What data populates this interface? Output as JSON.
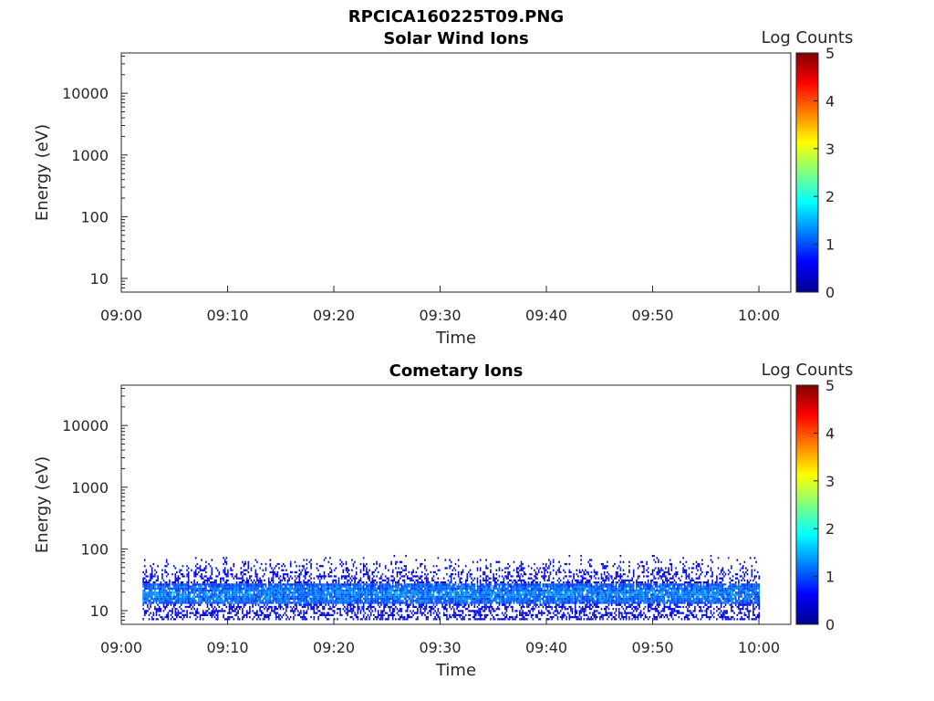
{
  "figure": {
    "title": "RPCICA160225T09.PNG"
  },
  "colors": {
    "axis": "#262626",
    "colormap": [
      "#00008f",
      "#0000ff",
      "#0080ff",
      "#00ffff",
      "#80ff80",
      "#ffff00",
      "#ff8000",
      "#ff0000",
      "#800000"
    ]
  },
  "chart_data": [
    {
      "type": "heatmap",
      "title": "Solar Wind Ions",
      "xlabel": "Time",
      "ylabel": "Energy (eV)",
      "x_ticks": [
        "09:00",
        "09:10",
        "09:20",
        "09:30",
        "09:40",
        "09:50",
        "10:00"
      ],
      "x_range": [
        "09:00",
        "10:03"
      ],
      "y_scale": "log",
      "y_ticks": [
        "10",
        "100",
        "1000",
        "10000"
      ],
      "y_range": [
        6,
        45000
      ],
      "colorbar": {
        "label": "Log Counts",
        "range": [
          0,
          5
        ],
        "ticks": [
          "0",
          "1",
          "2",
          "3",
          "4",
          "5"
        ]
      },
      "data_extent": null
    },
    {
      "type": "heatmap",
      "title": "Cometary Ions",
      "xlabel": "Time",
      "ylabel": "Energy (eV)",
      "x_ticks": [
        "09:00",
        "09:10",
        "09:20",
        "09:30",
        "09:40",
        "09:50",
        "10:00"
      ],
      "x_range": [
        "09:00",
        "10:03"
      ],
      "y_scale": "log",
      "y_ticks": [
        "10",
        "100",
        "1000",
        "10000"
      ],
      "y_range": [
        6,
        45000
      ],
      "colorbar": {
        "label": "Log Counts",
        "range": [
          0,
          5
        ],
        "ticks": [
          "0",
          "1",
          "2",
          "3",
          "4",
          "5"
        ]
      },
      "data_extent": {
        "time_start": "09:02",
        "time_end": "10:00",
        "energy_min_eV": 7,
        "energy_max_eV": 80,
        "core_energy_eV": [
          13,
          27
        ],
        "typical_log_counts": [
          0.5,
          2.0
        ],
        "peak_log_counts": 2.0
      }
    }
  ]
}
